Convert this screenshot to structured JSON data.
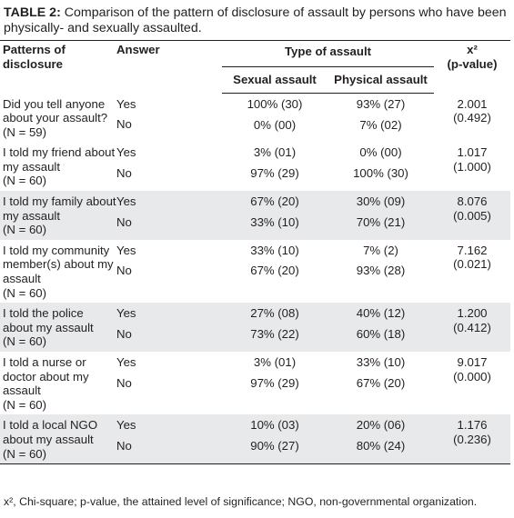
{
  "caption": {
    "label": "TABLE 2:",
    "text": "Comparison of the pattern of disclosure of assault by persons who have been physically- and sexually assaulted."
  },
  "header": {
    "patterns": "Patterns of disclosure",
    "answer": "Answer",
    "type_group": "Type of assault",
    "sexual": "Sexual assault",
    "physical": "Physical assault",
    "chi_symbol": "x²",
    "chi_pvalue": "(p-value)"
  },
  "rows": [
    {
      "pattern": "Did you tell anyone about your assault?",
      "n": "(N = 59)",
      "answers": [
        "Yes",
        "No"
      ],
      "sexual": [
        "100% (30)",
        "0% (00)"
      ],
      "physical": [
        "93% (27)",
        "7% (02)"
      ],
      "chi": "2.001",
      "p": "(0.492)",
      "shaded": false
    },
    {
      "pattern": "I told my friend about my assault",
      "n": "(N = 60)",
      "answers": [
        "Yes",
        "No"
      ],
      "sexual": [
        "3% (01)",
        "97% (29)"
      ],
      "physical": [
        "0% (00)",
        "100% (30)"
      ],
      "chi": "1.017",
      "p": "(1.000)",
      "shaded": false
    },
    {
      "pattern": "I told my family about my assault",
      "n": "(N = 60)",
      "answers": [
        "Yes",
        "No"
      ],
      "sexual": [
        "67% (20)",
        "33% (10)"
      ],
      "physical": [
        "30% (09)",
        "70% (21)"
      ],
      "chi": "8.076",
      "p": "(0.005)",
      "shaded": true
    },
    {
      "pattern": "I told my community member(s) about my assault",
      "n": "(N = 60)",
      "answers": [
        "Yes",
        "No"
      ],
      "sexual": [
        "33% (10)",
        "67% (20)"
      ],
      "physical": [
        "7% (2)",
        "93% (28)"
      ],
      "chi": "7.162",
      "p": "(0.021)",
      "shaded": false
    },
    {
      "pattern": "I told the police about my assault",
      "n": "(N = 60)",
      "answers": [
        "Yes",
        "No"
      ],
      "sexual": [
        "27% (08)",
        "73% (22)"
      ],
      "physical": [
        "40% (12)",
        "60% (18)"
      ],
      "chi": "1.200",
      "p": "(0.412)",
      "shaded": true
    },
    {
      "pattern": "I told a nurse or doctor about my assault",
      "n": "(N = 60)",
      "answers": [
        "Yes",
        "No"
      ],
      "sexual": [
        "3% (01)",
        "97% (29)"
      ],
      "physical": [
        "33% (10)",
        "67% (20)"
      ],
      "chi": "9.017",
      "p": "(0.000)",
      "shaded": false
    },
    {
      "pattern": "I told a local NGO about my assault",
      "n": "(N = 60)",
      "answers": [
        "Yes",
        "No"
      ],
      "sexual": [
        "10% (03)",
        "90% (27)"
      ],
      "physical": [
        "20% (06)",
        "80% (24)"
      ],
      "chi": "1.176",
      "p": "(0.236)",
      "shaded": true
    }
  ],
  "footnote": "x², Chi-square; p-value, the attained level of significance; NGO, non-governmental organization."
}
